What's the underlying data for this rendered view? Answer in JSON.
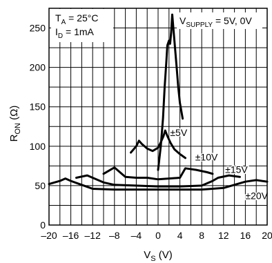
{
  "chart_data": {
    "type": "line",
    "xlabel": "V",
    "xlabel_sub": "S",
    "xlabel_unit": " (V)",
    "ylabel": "R",
    "ylabel_sub": "ON",
    "ylabel_unit": " (Ω)",
    "xlim": [
      -20,
      20
    ],
    "ylim": [
      0,
      275
    ],
    "xticks": [
      -20,
      -16,
      -12,
      -8,
      -4,
      0,
      4,
      8,
      12,
      16,
      20
    ],
    "xtick_labels": [
      "–20",
      "–16",
      "–12",
      "–8",
      "–4",
      "0",
      "4",
      "8",
      "12",
      "16",
      "20"
    ],
    "yticks": [
      0,
      50,
      100,
      150,
      200,
      250
    ],
    "grid": true,
    "grid_x_step": 2,
    "grid_y_step": 25,
    "conditions": [
      {
        "base": "T",
        "sub": "A",
        "rest": " = 25°C"
      },
      {
        "base": "I",
        "sub": "D",
        "rest": " = 1mA"
      }
    ],
    "supply": {
      "base": "V",
      "sub": "SUPPLY",
      "rest": " = 5V, 0V"
    },
    "series": [
      {
        "name": "",
        "points": [
          [
            0,
            70
          ],
          [
            0.5,
            100
          ],
          [
            0.9,
            135
          ],
          [
            1.2,
            175
          ],
          [
            1.5,
            205
          ],
          [
            1.7,
            228
          ],
          [
            2.0,
            234
          ],
          [
            2.2,
            230
          ],
          [
            2.4,
            245
          ],
          [
            2.6,
            267
          ],
          [
            2.8,
            250
          ],
          [
            3.1,
            225
          ],
          [
            3.4,
            200
          ],
          [
            3.7,
            175
          ],
          [
            4.0,
            155
          ],
          [
            4.5,
            135
          ]
        ]
      },
      {
        "name": "±5V",
        "points": [
          [
            -5,
            92
          ],
          [
            -4,
            100
          ],
          [
            -3.5,
            107
          ],
          [
            -3,
            103
          ],
          [
            -2,
            97
          ],
          [
            -1,
            94
          ],
          [
            0,
            98
          ],
          [
            0.5,
            105
          ],
          [
            1,
            113
          ],
          [
            1.3,
            120
          ],
          [
            1.7,
            113
          ],
          [
            2.3,
            104
          ],
          [
            3,
            96
          ],
          [
            4,
            90
          ],
          [
            5,
            85
          ]
        ]
      },
      {
        "name": "±10V",
        "points": [
          [
            -10,
            65
          ],
          [
            -9,
            69
          ],
          [
            -8,
            73
          ],
          [
            -7,
            67
          ],
          [
            -6,
            61
          ],
          [
            -4,
            60
          ],
          [
            -2,
            60
          ],
          [
            0,
            58
          ],
          [
            2,
            59
          ],
          [
            4,
            60
          ],
          [
            5,
            72
          ],
          [
            7,
            70
          ],
          [
            9,
            67
          ],
          [
            10,
            65
          ]
        ]
      },
      {
        "name": "±15V",
        "points": [
          [
            -15,
            60
          ],
          [
            -13,
            63
          ],
          [
            -12,
            60
          ],
          [
            -10,
            54
          ],
          [
            -8,
            51
          ],
          [
            -4,
            50
          ],
          [
            0,
            49
          ],
          [
            4,
            49
          ],
          [
            8,
            50
          ],
          [
            10,
            56
          ],
          [
            11,
            60
          ],
          [
            13,
            63
          ],
          [
            15,
            61
          ]
        ]
      },
      {
        "name": "±20V",
        "points": [
          [
            -20,
            52
          ],
          [
            -18,
            56
          ],
          [
            -17,
            59
          ],
          [
            -16,
            56
          ],
          [
            -14,
            51
          ],
          [
            -12,
            46
          ],
          [
            -8,
            45
          ],
          [
            -4,
            45
          ],
          [
            0,
            45
          ],
          [
            4,
            45
          ],
          [
            8,
            45
          ],
          [
            12,
            47
          ],
          [
            16,
            55
          ],
          [
            18,
            57
          ],
          [
            20,
            55
          ]
        ]
      }
    ],
    "series_labels": [
      {
        "text": "±5V",
        "x": 2.2,
        "y": 113
      },
      {
        "text": "±10V",
        "x": 6.8,
        "y": 82
      },
      {
        "text": "±15V",
        "x": 12.3,
        "y": 66
      },
      {
        "text": "±20V",
        "x": 16.0,
        "y": 33
      }
    ]
  }
}
